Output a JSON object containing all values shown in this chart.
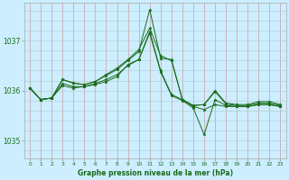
{
  "xlabel": "Graphe pression niveau de la mer (hPa)",
  "bg_color": "#cceeff",
  "grid_color_v": "#aacccc",
  "grid_color_h": "#aacccc",
  "line_color": "#1a6b1a",
  "xlim": [
    -0.5,
    23.5
  ],
  "ylim": [
    1034.65,
    1037.75
  ],
  "yticks": [
    1035,
    1036,
    1037
  ],
  "xticks": [
    0,
    1,
    2,
    3,
    4,
    5,
    6,
    7,
    8,
    9,
    10,
    11,
    12,
    13,
    14,
    15,
    16,
    17,
    18,
    19,
    20,
    21,
    22,
    23
  ],
  "series": [
    [
      1036.05,
      1035.82,
      1035.85,
      1036.22,
      1036.15,
      1036.12,
      1036.18,
      1036.3,
      1036.42,
      1036.6,
      1036.78,
      1037.62,
      1036.65,
      1036.62,
      1035.82,
      1035.7,
      1035.72,
      1036.0,
      1035.75,
      1035.72,
      1035.72,
      1035.78,
      1035.78,
      1035.72
    ],
    [
      1036.05,
      1035.82,
      1035.85,
      1036.22,
      1036.15,
      1036.12,
      1036.18,
      1036.32,
      1036.45,
      1036.62,
      1036.82,
      1037.25,
      1036.7,
      1036.6,
      1035.82,
      1035.7,
      1035.72,
      1035.98,
      1035.73,
      1035.7,
      1035.7,
      1035.75,
      1035.75,
      1035.7
    ],
    [
      1036.05,
      1035.82,
      1035.85,
      1036.1,
      1036.05,
      1036.08,
      1036.12,
      1036.18,
      1036.28,
      1036.52,
      1036.62,
      1037.18,
      1036.4,
      1035.92,
      1035.82,
      1035.68,
      1035.62,
      1035.72,
      1035.68,
      1035.68,
      1035.68,
      1035.72,
      1035.72,
      1035.68
    ],
    [
      1036.05,
      1035.82,
      1035.85,
      1036.14,
      1036.08,
      1036.08,
      1036.14,
      1036.22,
      1036.32,
      1036.5,
      1036.62,
      1037.15,
      1036.38,
      1035.9,
      1035.8,
      1035.65,
      1035.12,
      1035.82,
      1035.7,
      1035.68,
      1035.68,
      1035.72,
      1035.72,
      1035.68
    ]
  ]
}
